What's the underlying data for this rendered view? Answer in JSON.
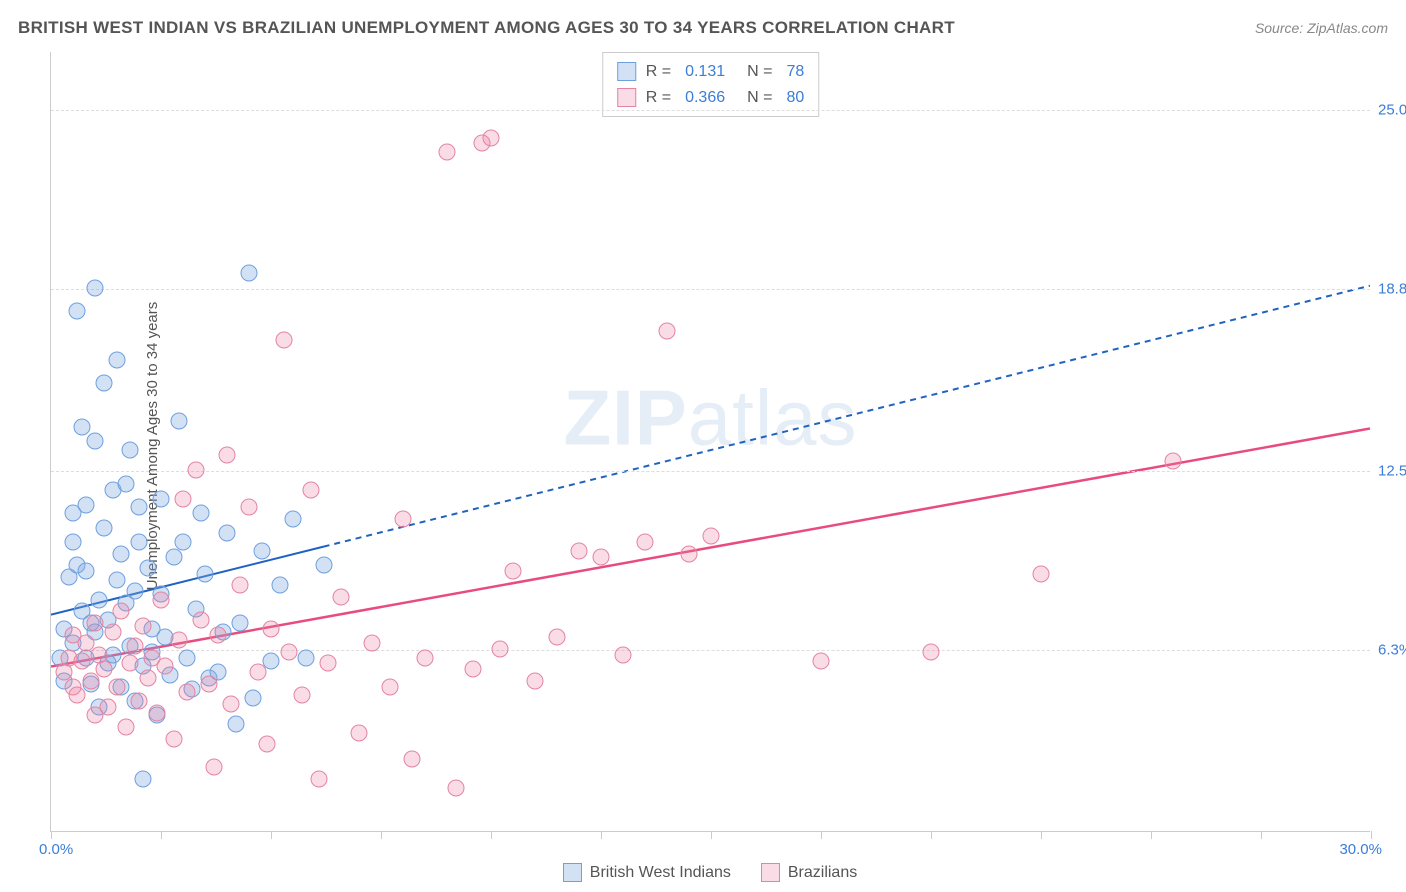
{
  "title": "BRITISH WEST INDIAN VS BRAZILIAN UNEMPLOYMENT AMONG AGES 30 TO 34 YEARS CORRELATION CHART",
  "source": "Source: ZipAtlas.com",
  "ylabel": "Unemployment Among Ages 30 to 34 years",
  "watermark": {
    "bold": "ZIP",
    "light": "atlas"
  },
  "chart": {
    "type": "scatter",
    "background_color": "#ffffff",
    "grid_color": "#dddddd",
    "axis_color": "#cccccc",
    "xlim": [
      0,
      30
    ],
    "ylim": [
      0,
      27
    ],
    "x_min_label": "0.0%",
    "x_max_label": "30.0%",
    "y_gridlines": [
      {
        "y": 6.3,
        "label": "6.3%"
      },
      {
        "y": 12.5,
        "label": "12.5%"
      },
      {
        "y": 18.8,
        "label": "18.8%"
      },
      {
        "y": 25.0,
        "label": "25.0%"
      }
    ],
    "x_ticks": [
      0,
      2.5,
      5,
      7.5,
      10,
      12.5,
      15,
      17.5,
      20,
      22.5,
      25,
      27.5,
      30
    ],
    "series": [
      {
        "name": "British West Indians",
        "fill": "rgba(130,170,225,0.35)",
        "stroke": "#6ea0de",
        "marker_radius": 8.5,
        "R": "0.131",
        "N": "78",
        "trend": {
          "intercept": 7.5,
          "slope": 0.38,
          "color": "#1f63c2",
          "width": 2,
          "solid_until_x": 6.2,
          "dash": "6 5"
        },
        "points": [
          [
            0.2,
            6.0
          ],
          [
            0.3,
            5.2
          ],
          [
            0.3,
            7.0
          ],
          [
            0.4,
            8.8
          ],
          [
            0.5,
            11.0
          ],
          [
            0.5,
            6.5
          ],
          [
            0.5,
            10.0
          ],
          [
            0.6,
            9.2
          ],
          [
            0.6,
            18.0
          ],
          [
            0.7,
            14.0
          ],
          [
            0.7,
            7.6
          ],
          [
            0.8,
            6.0
          ],
          [
            0.8,
            9.0
          ],
          [
            0.8,
            11.3
          ],
          [
            0.9,
            5.1
          ],
          [
            0.9,
            7.2
          ],
          [
            1.0,
            18.8
          ],
          [
            1.0,
            13.5
          ],
          [
            1.0,
            6.9
          ],
          [
            1.1,
            8.0
          ],
          [
            1.1,
            4.3
          ],
          [
            1.2,
            15.5
          ],
          [
            1.2,
            10.5
          ],
          [
            1.3,
            5.8
          ],
          [
            1.3,
            7.3
          ],
          [
            1.4,
            6.1
          ],
          [
            1.4,
            11.8
          ],
          [
            1.5,
            8.7
          ],
          [
            1.5,
            16.3
          ],
          [
            1.6,
            9.6
          ],
          [
            1.6,
            5.0
          ],
          [
            1.7,
            12.0
          ],
          [
            1.7,
            7.9
          ],
          [
            1.8,
            13.2
          ],
          [
            1.8,
            6.4
          ],
          [
            1.9,
            4.5
          ],
          [
            1.9,
            8.3
          ],
          [
            2.0,
            11.2
          ],
          [
            2.0,
            10.0
          ],
          [
            2.1,
            5.7
          ],
          [
            2.1,
            1.8
          ],
          [
            2.2,
            9.1
          ],
          [
            2.3,
            7.0
          ],
          [
            2.3,
            6.2
          ],
          [
            2.4,
            4.0
          ],
          [
            2.5,
            11.5
          ],
          [
            2.5,
            8.2
          ],
          [
            2.6,
            6.7
          ],
          [
            2.7,
            5.4
          ],
          [
            2.8,
            9.5
          ],
          [
            2.9,
            14.2
          ],
          [
            3.0,
            10.0
          ],
          [
            3.1,
            6.0
          ],
          [
            3.2,
            4.9
          ],
          [
            3.3,
            7.7
          ],
          [
            3.4,
            11.0
          ],
          [
            3.5,
            8.9
          ],
          [
            3.6,
            5.3
          ],
          [
            3.8,
            5.5
          ],
          [
            3.9,
            6.9
          ],
          [
            4.0,
            10.3
          ],
          [
            4.2,
            3.7
          ],
          [
            4.3,
            7.2
          ],
          [
            4.5,
            19.3
          ],
          [
            4.6,
            4.6
          ],
          [
            4.8,
            9.7
          ],
          [
            5.0,
            5.9
          ],
          [
            5.2,
            8.5
          ],
          [
            5.5,
            10.8
          ],
          [
            5.8,
            6.0
          ],
          [
            6.2,
            9.2
          ]
        ]
      },
      {
        "name": "Brazilians",
        "fill": "rgba(235,130,160,0.28)",
        "stroke": "#e484a2",
        "marker_radius": 8.5,
        "R": "0.366",
        "N": "80",
        "trend": {
          "intercept": 5.7,
          "slope": 0.275,
          "color": "#e84c7f",
          "width": 2.5,
          "solid_until_x": 30,
          "dash": null
        },
        "points": [
          [
            0.3,
            5.5
          ],
          [
            0.4,
            6.0
          ],
          [
            0.5,
            5.0
          ],
          [
            0.5,
            6.8
          ],
          [
            0.6,
            4.7
          ],
          [
            0.7,
            5.9
          ],
          [
            0.8,
            6.5
          ],
          [
            0.9,
            5.2
          ],
          [
            1.0,
            7.2
          ],
          [
            1.0,
            4.0
          ],
          [
            1.1,
            6.1
          ],
          [
            1.2,
            5.6
          ],
          [
            1.3,
            4.3
          ],
          [
            1.4,
            6.9
          ],
          [
            1.5,
            5.0
          ],
          [
            1.6,
            7.6
          ],
          [
            1.7,
            3.6
          ],
          [
            1.8,
            5.8
          ],
          [
            1.9,
            6.4
          ],
          [
            2.0,
            4.5
          ],
          [
            2.1,
            7.1
          ],
          [
            2.2,
            5.3
          ],
          [
            2.3,
            6.0
          ],
          [
            2.4,
            4.1
          ],
          [
            2.5,
            8.0
          ],
          [
            2.6,
            5.7
          ],
          [
            2.8,
            3.2
          ],
          [
            2.9,
            6.6
          ],
          [
            3.0,
            11.5
          ],
          [
            3.1,
            4.8
          ],
          [
            3.3,
            12.5
          ],
          [
            3.4,
            7.3
          ],
          [
            3.6,
            5.1
          ],
          [
            3.7,
            2.2
          ],
          [
            3.8,
            6.8
          ],
          [
            4.0,
            13.0
          ],
          [
            4.1,
            4.4
          ],
          [
            4.3,
            8.5
          ],
          [
            4.5,
            11.2
          ],
          [
            4.7,
            5.5
          ],
          [
            4.9,
            3.0
          ],
          [
            5.0,
            7.0
          ],
          [
            5.3,
            17.0
          ],
          [
            5.4,
            6.2
          ],
          [
            5.7,
            4.7
          ],
          [
            5.9,
            11.8
          ],
          [
            6.1,
            1.8
          ],
          [
            6.3,
            5.8
          ],
          [
            6.6,
            8.1
          ],
          [
            7.0,
            3.4
          ],
          [
            7.3,
            6.5
          ],
          [
            7.7,
            5.0
          ],
          [
            8.0,
            10.8
          ],
          [
            8.2,
            2.5
          ],
          [
            8.5,
            6.0
          ],
          [
            9.0,
            23.5
          ],
          [
            9.2,
            1.5
          ],
          [
            9.6,
            5.6
          ],
          [
            9.8,
            23.8
          ],
          [
            10.0,
            24.0
          ],
          [
            10.2,
            6.3
          ],
          [
            10.5,
            9.0
          ],
          [
            11.0,
            5.2
          ],
          [
            11.5,
            6.7
          ],
          [
            12.0,
            9.7
          ],
          [
            12.5,
            9.5
          ],
          [
            13.0,
            6.1
          ],
          [
            13.5,
            10.0
          ],
          [
            14.0,
            17.3
          ],
          [
            14.5,
            9.6
          ],
          [
            15.0,
            10.2
          ],
          [
            17.5,
            5.9
          ],
          [
            20.0,
            6.2
          ],
          [
            22.5,
            8.9
          ],
          [
            25.5,
            12.8
          ]
        ]
      }
    ],
    "legend_top": {
      "rows": [
        {
          "swatch_fill": "rgba(130,170,225,0.35)",
          "swatch_stroke": "#6ea0de",
          "R_label": "R =",
          "R_val": "0.131",
          "N_label": "N =",
          "N_val": "78"
        },
        {
          "swatch_fill": "rgba(235,130,160,0.28)",
          "swatch_stroke": "#e484a2",
          "R_label": "R =",
          "R_val": "0.366",
          "N_label": "N =",
          "N_val": "80"
        }
      ]
    },
    "legend_bottom": [
      {
        "fill": "rgba(130,170,225,0.35)",
        "stroke": "#6ea0de",
        "label": "British West Indians"
      },
      {
        "fill": "rgba(235,130,160,0.28)",
        "stroke": "#e484a2",
        "label": "Brazilians"
      }
    ]
  }
}
